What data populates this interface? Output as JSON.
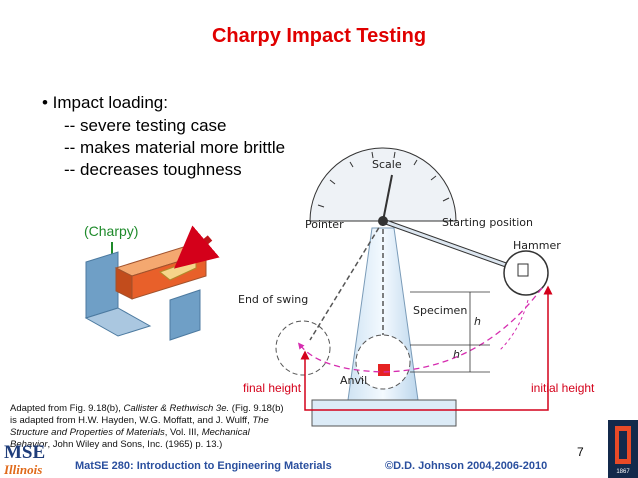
{
  "header": {
    "title": "Charpy Impact Testing"
  },
  "bullets": {
    "main": "• Impact loading:",
    "sub": [
      "-- severe testing case",
      "-- makes material more brittle",
      "-- decreases toughness"
    ]
  },
  "specimen_figure": {
    "label": "(Charpy)"
  },
  "machine_figure": {
    "scale": "Scale",
    "pointer": "Pointer",
    "starting_position": "Starting position",
    "hammer": "Hammer",
    "end_of_swing": "End of swing",
    "specimen": "Specimen",
    "h": "h",
    "h_prime": "h′",
    "anvil": "Anvil",
    "final_height": "final height",
    "initial_height": "initial height"
  },
  "caption": {
    "lines": [
      [
        "Adapted from Fig. 9.18(b), ",
        "Callister & Rethwisch 3e.",
        " (Fig. 9.18(b)"
      ],
      [
        "is adapted from H.W. Hayden, W.G. Moffatt, and J. Wulff, ",
        "The"
      ],
      [
        "Structure and Properties of Materials",
        ", Vol. III, ",
        "Mechanical"
      ],
      [
        "Behavior",
        ", John Wiley and Sons, Inc. (1965) p. 13.)"
      ]
    ]
  },
  "footer": {
    "logo_top": "MSE",
    "logo_bottom": "Illinois",
    "course": "MatSE 280: Introduction to Engineering Materials",
    "copyright": "©D.D. Johnson 2004,2006-2010",
    "page_number": "7",
    "seal_year": "1867"
  }
}
